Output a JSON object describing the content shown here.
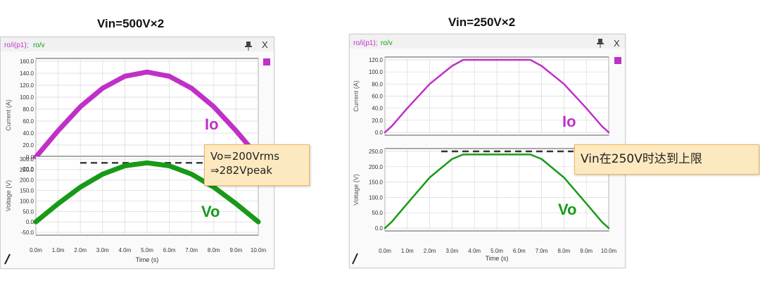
{
  "headings": {
    "left": "Vin=500V×2",
    "right": "Vin=250V×2"
  },
  "window": {
    "legend_io": "ro/i(p1);",
    "legend_vo": "ro/v",
    "pin_icon": "pin-icon",
    "close_label": "X",
    "current_axis_label": "Current (A)",
    "voltage_axis_label": "Voltage (V)",
    "time_axis_label": "Time (s)",
    "x_ticks": [
      "0.0m",
      "1.0m",
      "2.0m",
      "3.0m",
      "4.0m",
      "5.0m",
      "6.0m",
      "7.0m",
      "8.0m",
      "9.0m",
      "10.0m"
    ]
  },
  "colors": {
    "io": "#c030c8",
    "vo": "#189a18",
    "callout_bg": "#fde9c0",
    "callout_border": "#f1b95a"
  },
  "callouts": {
    "left_line1": "Vo=200Vrms",
    "left_line2": "⇒282Vpeak",
    "right": "Vin在250V时达到上限"
  },
  "chart_data": [
    {
      "type": "line",
      "panel": "left-top",
      "xlabel": "Time (s)",
      "ylabel": "Current (A)",
      "xlim": [
        0,
        10
      ],
      "ylim": [
        -10,
        160
      ],
      "yticks": [
        "160.0",
        "140.0",
        "120.0",
        "100.0",
        "80.0",
        "60.0",
        "40.0",
        "20.0",
        "0.0",
        "-20.0"
      ],
      "series": [
        {
          "name": "Io",
          "x": [
            0,
            1,
            2,
            3,
            4,
            5,
            6,
            7,
            8,
            9,
            10
          ],
          "y": [
            0,
            44,
            84,
            115,
            135,
            142,
            135,
            115,
            84,
            44,
            0
          ]
        }
      ]
    },
    {
      "type": "line",
      "panel": "left-bottom",
      "xlabel": "Time (s)",
      "ylabel": "Voltage (V)",
      "xlim": [
        0,
        10
      ],
      "ylim": [
        -50,
        310
      ],
      "yticks": [
        "300.0",
        "250.0",
        "200.0",
        "150.0",
        "100.0",
        "50.0",
        "0.0",
        "-50.0"
      ],
      "series": [
        {
          "name": "Vo",
          "x": [
            0,
            1,
            2,
            3,
            4,
            5,
            6,
            7,
            8,
            9,
            10
          ],
          "y": [
            0,
            87,
            166,
            228,
            268,
            282,
            268,
            228,
            166,
            87,
            0
          ]
        }
      ],
      "reference_line": 282
    },
    {
      "type": "line",
      "panel": "right-top",
      "xlabel": "Time (s)",
      "ylabel": "Current (A)",
      "xlim": [
        0,
        10
      ],
      "ylim": [
        -5,
        130
      ],
      "yticks": [
        "120.0",
        "100.0",
        "80.0",
        "60.0",
        "40.0",
        "20.0",
        "0.0"
      ],
      "series": [
        {
          "name": "Io",
          "x": [
            0,
            0.3,
            1,
            2,
            3,
            3.5,
            6.5,
            7,
            8,
            9,
            9.7,
            10
          ],
          "y": [
            0,
            10,
            40,
            80,
            110,
            120,
            120,
            110,
            80,
            40,
            10,
            0
          ]
        }
      ]
    },
    {
      "type": "line",
      "panel": "right-bottom",
      "xlabel": "Time (s)",
      "ylabel": "Voltage (V)",
      "xlim": [
        0,
        10
      ],
      "ylim": [
        -15,
        265
      ],
      "yticks": [
        "250.0",
        "200.0",
        "150.0",
        "100.0",
        "50.0",
        "0.0"
      ],
      "series": [
        {
          "name": "Vo",
          "x": [
            0,
            0.3,
            1,
            2,
            3,
            3.5,
            6.5,
            7,
            8,
            9,
            9.7,
            10
          ],
          "y": [
            0,
            20,
            80,
            165,
            225,
            240,
            240,
            225,
            165,
            80,
            20,
            0
          ]
        }
      ],
      "reference_line": 250
    }
  ]
}
